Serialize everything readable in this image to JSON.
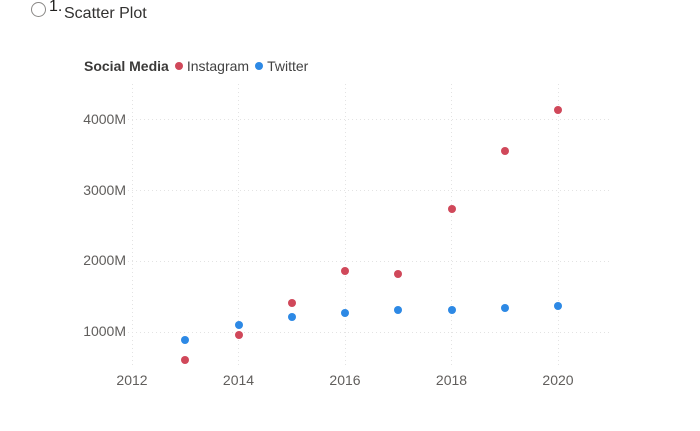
{
  "page": {
    "item_number": "1.",
    "item_label": "Scatter Plot"
  },
  "legend": {
    "title": "Social Media"
  },
  "colors": {
    "instagram": "#d0485a",
    "twitter": "#2d89e5",
    "grid": "#e3e3e3",
    "axis_text": "#605e5c"
  },
  "chart_data": {
    "type": "scatter",
    "title": "Social Media",
    "xlabel": "",
    "ylabel": "",
    "x": [
      2013,
      2014,
      2015,
      2016,
      2017,
      2018,
      2019,
      2020
    ],
    "series": [
      {
        "name": "Instagram",
        "color": "#d0485a",
        "values": [
          600,
          950,
          1410,
          1850,
          1820,
          2740,
          3560,
          4130
        ]
      },
      {
        "name": "Twitter",
        "color": "#2d89e5",
        "values": [
          880,
          1090,
          1210,
          1270,
          1300,
          1310,
          1330,
          1360
        ]
      }
    ],
    "xticks": [
      2012,
      2014,
      2016,
      2018,
      2020
    ],
    "yticks": [
      {
        "value": 1000,
        "label": "1000M"
      },
      {
        "value": 2000,
        "label": "2000M"
      },
      {
        "value": 3000,
        "label": "3000M"
      },
      {
        "value": 4000,
        "label": "4000M"
      }
    ],
    "xlim": [
      2012,
      2021
    ],
    "ylim": [
      500,
      4500
    ],
    "grid": "dotted",
    "legend_position": "top-left",
    "unit": "M"
  }
}
